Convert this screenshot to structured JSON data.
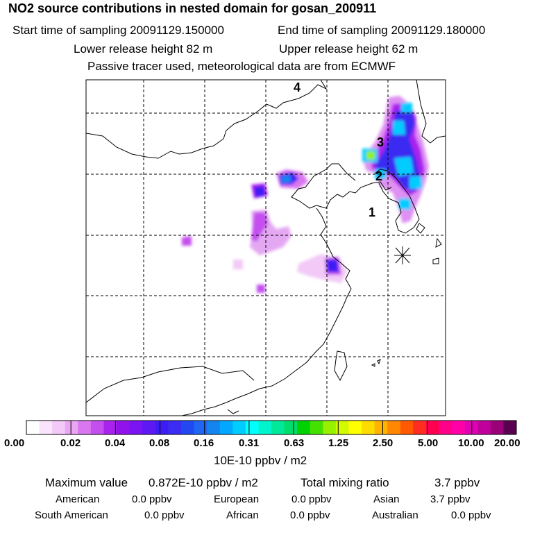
{
  "header": {
    "title": "NO2 source contributions in nested domain for gosan_200911",
    "start_time": "Start time of sampling 20091129.150000",
    "end_time": "End time of sampling 20091129.180000",
    "lower_height": "Lower release height   82 m",
    "upper_height": "Upper release height   62 m",
    "tracer_note": "Passive tracer used, meteorological data are from ECMWF"
  },
  "map": {
    "labels": [
      "4",
      "3",
      "2",
      "1"
    ],
    "receptor_marker": "asterisk-star"
  },
  "colorbar": {
    "ticks": [
      "0.00",
      "0.02",
      "0.04",
      "0.08",
      "0.16",
      "0.31",
      "0.63",
      "1.25",
      "2.50",
      "5.00",
      "10.00",
      "20.00"
    ],
    "unit": "10E-10 ppbv / m2",
    "colors": [
      "#ffffff",
      "#f9e4fb",
      "#f2c9f7",
      "#e9a6f3",
      "#d877ef",
      "#c44fee",
      "#aa22ee",
      "#9212ec",
      "#7a14f2",
      "#5e18f3",
      "#3d1df4",
      "#3a2cf1",
      "#2348f2",
      "#1f66f3",
      "#1484f0",
      "#00a8ff",
      "#00ccff",
      "#00ffff",
      "#00f5cc",
      "#00e99a",
      "#00dd6c",
      "#00d200",
      "#44e000",
      "#96f000",
      "#d2fa00",
      "#ffff00",
      "#ffdc00",
      "#ffb400",
      "#ff8800",
      "#ff5a00",
      "#ff2c20",
      "#ff0050",
      "#ff0088",
      "#ff00a8",
      "#e000b4",
      "#c0009a",
      "#9a0078",
      "#5a0050"
    ]
  },
  "stats": {
    "max_label": "Maximum value",
    "max_value": "0.872E-10 ppbv / m2",
    "total_label": "Total mixing ratio",
    "total_value": "3.7 ppbv",
    "regions": [
      {
        "name": "American",
        "value": "0.0 ppbv"
      },
      {
        "name": "European",
        "value": "0.0 ppbv"
      },
      {
        "name": "Asian",
        "value": "3.7 ppbv"
      },
      {
        "name": "South American",
        "value": "0.0 ppbv"
      },
      {
        "name": "African",
        "value": "0.0 ppbv"
      },
      {
        "name": "Australian",
        "value": "0.0 ppbv"
      }
    ]
  }
}
